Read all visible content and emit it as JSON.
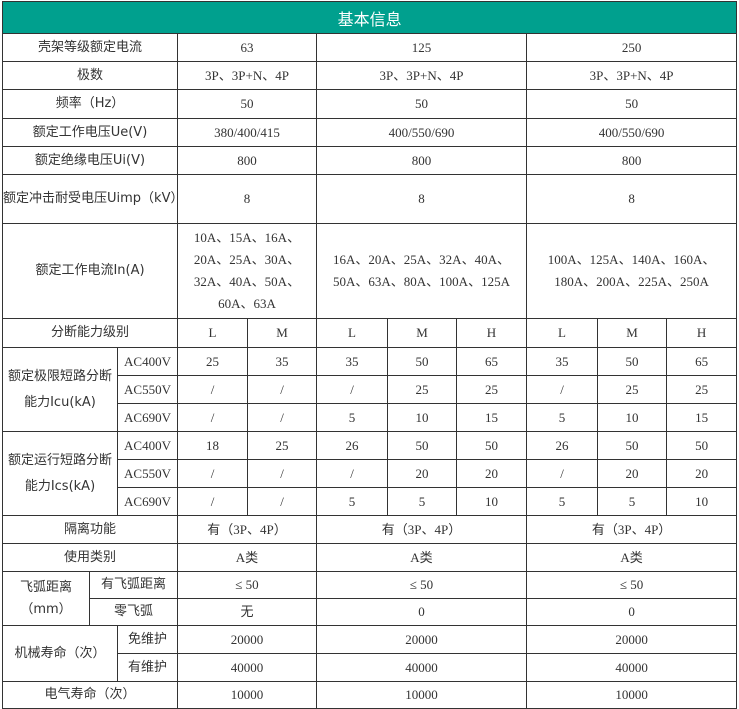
{
  "title": "基本信息",
  "rows": {
    "frame": {
      "label": "壳架等级额定电流",
      "v": [
        "63",
        "125",
        "250"
      ]
    },
    "poles": {
      "label": "极数",
      "v": [
        "3P、3P+N、4P",
        "3P、3P+N、4P",
        "3P、3P+N、4P"
      ]
    },
    "freq": {
      "label": "频率（Hz）",
      "v": [
        "50",
        "50",
        "50"
      ]
    },
    "ue": {
      "label": "额定工作电压Ue(V)",
      "v": [
        "380/400/415",
        "400/550/690",
        "400/550/690"
      ]
    },
    "ui": {
      "label": "额定绝缘电压Ui(V)",
      "v": [
        "800",
        "800",
        "800"
      ]
    },
    "uimp": {
      "label": "额定冲击耐受电压Uimp（kV）",
      "v": [
        "8",
        "8",
        "8"
      ]
    },
    "in": {
      "label": "额定工作电流In(A)",
      "v": [
        "10A、15A、16A、20A、25A、30A、32A、40A、50A、60A、63A",
        "16A、20A、25A、32A、40A、50A、63A、80A、100A、125A",
        "100A、125A、140A、160A、180A、200A、225A、250A"
      ]
    },
    "grade": {
      "label": "分断能力级别",
      "v": [
        "L",
        "M",
        "L",
        "M",
        "H",
        "L",
        "M",
        "H"
      ]
    },
    "icu": {
      "label": "额定极限短路分断能力Icu(kA)",
      "sub": [
        {
          "v": "AC400V",
          "d": [
            "25",
            "35",
            "35",
            "50",
            "65",
            "35",
            "50",
            "65"
          ]
        },
        {
          "v": "AC550V",
          "d": [
            "/",
            "/",
            "/",
            "25",
            "25",
            "/",
            "25",
            "25"
          ]
        },
        {
          "v": "AC690V",
          "d": [
            "/",
            "/",
            "5",
            "10",
            "15",
            "5",
            "10",
            "15"
          ]
        }
      ]
    },
    "ics": {
      "label": "额定运行短路分断能力Ics(kA)",
      "sub": [
        {
          "v": "AC400V",
          "d": [
            "18",
            "25",
            "26",
            "50",
            "50",
            "26",
            "50",
            "50"
          ]
        },
        {
          "v": "AC550V",
          "d": [
            "/",
            "/",
            "/",
            "20",
            "20",
            "/",
            "20",
            "20"
          ]
        },
        {
          "v": "AC690V",
          "d": [
            "/",
            "/",
            "5",
            "5",
            "10",
            "5",
            "5",
            "10"
          ]
        }
      ]
    },
    "isolation": {
      "label": "隔离功能",
      "v": [
        "有（3P、4P）",
        "有（3P、4P）",
        "有（3P、4P）"
      ]
    },
    "category": {
      "label": "使用类别",
      "v": [
        "A类",
        "A类",
        "A类"
      ]
    },
    "arc": {
      "label": "飞弧距离（mm）",
      "sub": [
        {
          "label": "有飞弧距离",
          "v": [
            "≤ 50",
            "≤ 50",
            "≤ 50"
          ]
        },
        {
          "label": "零飞弧",
          "v": [
            "无",
            "0",
            "0"
          ]
        }
      ]
    },
    "mech": {
      "label": "机械寿命（次）",
      "sub": [
        {
          "label": "免维护",
          "v": [
            "20000",
            "20000",
            "20000"
          ]
        },
        {
          "label": "有维护",
          "v": [
            "40000",
            "40000",
            "40000"
          ]
        }
      ]
    },
    "elec": {
      "label": "电气寿命（次）",
      "v": [
        "10000",
        "10000",
        "10000"
      ]
    }
  }
}
